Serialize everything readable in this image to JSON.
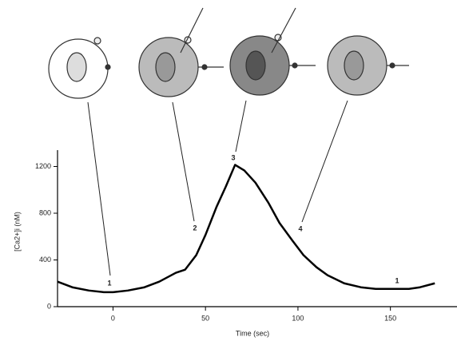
{
  "chart_data": {
    "type": "line",
    "x_label": "Time (sec)",
    "y_label": "[Ca2+]i (nM)",
    "x": [
      -30,
      -22,
      -13,
      -5,
      0,
      8,
      17,
      25,
      34,
      39,
      45,
      50,
      56,
      61,
      66,
      71,
      77,
      84,
      90,
      97,
      103,
      110,
      116,
      125,
      134,
      142,
      150,
      160,
      166,
      174
    ],
    "values": [
      214,
      166,
      138,
      124,
      124,
      138,
      166,
      214,
      290,
      317,
      441,
      614,
      855,
      1028,
      1214,
      1166,
      1062,
      890,
      717,
      566,
      441,
      338,
      269,
      200,
      166,
      152,
      152,
      152,
      166,
      200
    ],
    "color": "#000000",
    "xlim": [
      -30,
      186
    ],
    "xticks": [
      0,
      50,
      100,
      150
    ],
    "ylim": [
      0,
      1340
    ],
    "yticks": [
      0,
      400,
      800,
      1200
    ],
    "annotations": [
      "1",
      "2",
      "3",
      "4",
      "1"
    ]
  }
}
